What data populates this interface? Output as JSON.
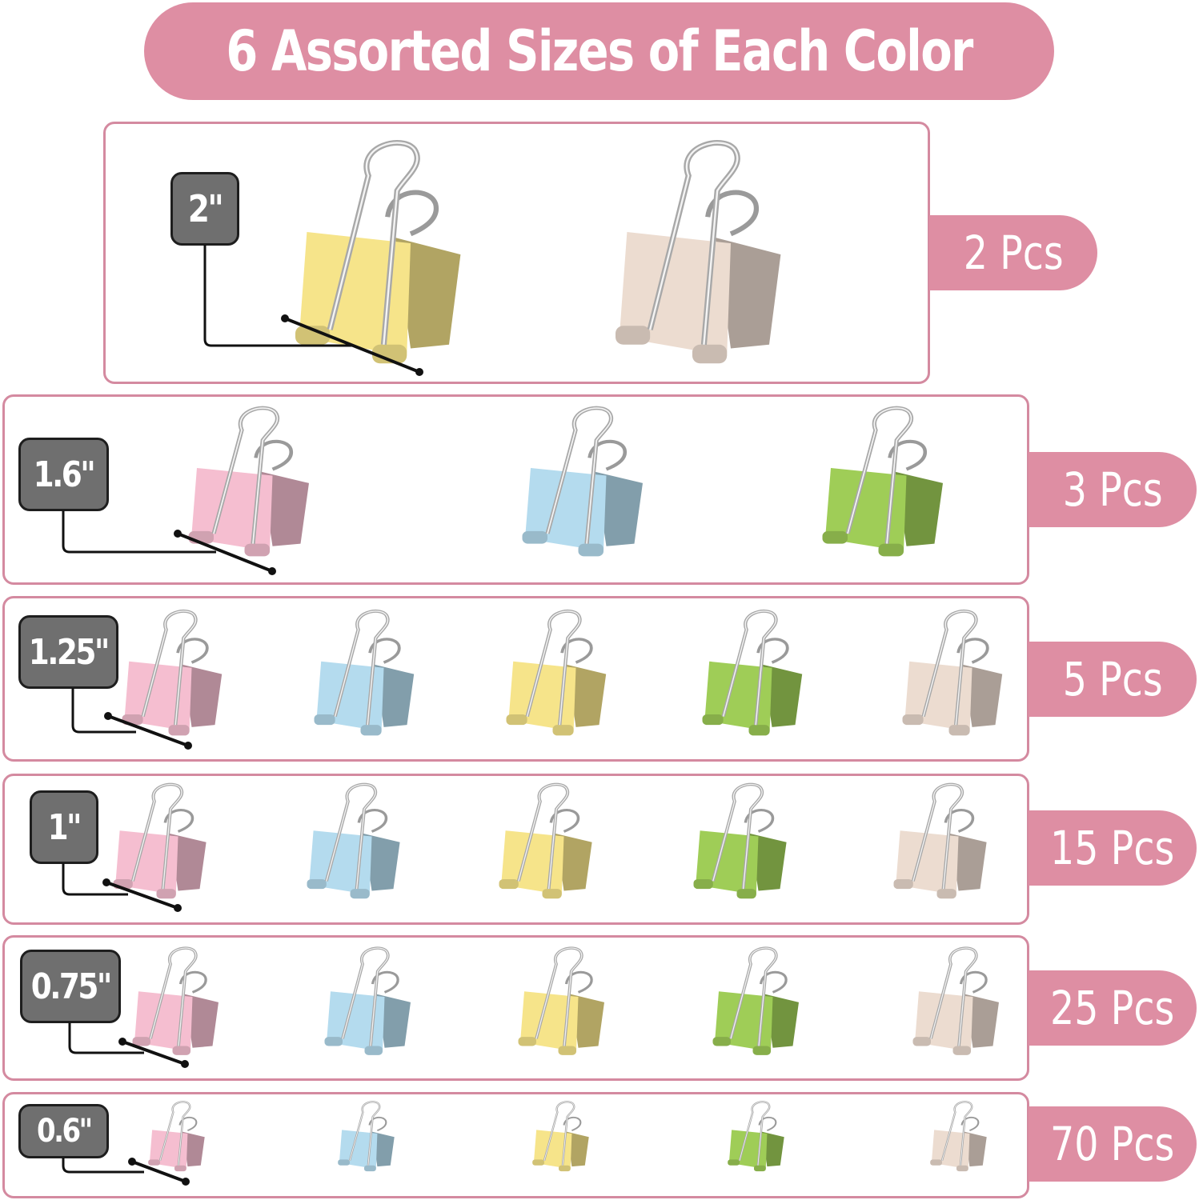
{
  "header": {
    "title": "6 Assorted Sizes of Each Color"
  },
  "colors": {
    "accent_pink": "#de8ea3",
    "badge_gray": "#6f6f6f",
    "yellow": "#f6e48a",
    "beige": "#ecdcd0",
    "pink": "#f5bed0",
    "blue": "#b4dbee",
    "green": "#9fcd57"
  },
  "rows": [
    {
      "size": "2\"",
      "quantity": "2 Pcs",
      "clips": [
        "yellow",
        "beige"
      ]
    },
    {
      "size": "1.6\"",
      "quantity": "3 Pcs",
      "clips": [
        "pink",
        "blue",
        "green"
      ]
    },
    {
      "size": "1.25\"",
      "quantity": "5 Pcs",
      "clips": [
        "pink",
        "blue",
        "yellow",
        "green",
        "beige"
      ]
    },
    {
      "size": "1\"",
      "quantity": "15 Pcs",
      "clips": [
        "pink",
        "blue",
        "yellow",
        "green",
        "beige"
      ]
    },
    {
      "size": "0.75\"",
      "quantity": "25 Pcs",
      "clips": [
        "pink",
        "blue",
        "yellow",
        "green",
        "beige"
      ]
    },
    {
      "size": "0.6\"",
      "quantity": "70 Pcs",
      "clips": [
        "pink",
        "blue",
        "yellow",
        "green",
        "beige"
      ]
    }
  ]
}
